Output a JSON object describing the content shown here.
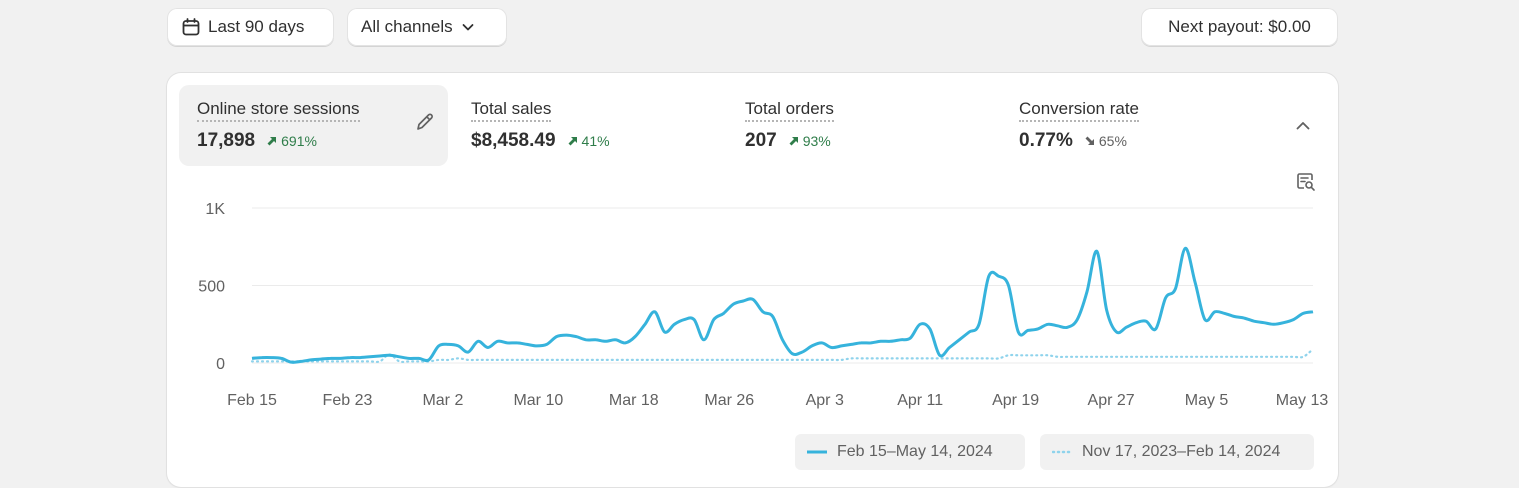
{
  "toolbar": {
    "date_range_label": "Last 90 days",
    "channels_label": "All channels",
    "payout_label": "Next payout: $0.00"
  },
  "metrics": [
    {
      "label": "Online store sessions",
      "value": "17,898",
      "change": "691%",
      "direction": "up"
    },
    {
      "label": "Total sales",
      "value": "$8,458.49",
      "change": "41%",
      "direction": "up"
    },
    {
      "label": "Total orders",
      "value": "207",
      "change": "93%",
      "direction": "up"
    },
    {
      "label": "Conversion rate",
      "value": "0.77%",
      "change": "65%",
      "direction": "down"
    }
  ],
  "icons": {
    "date": "calendar-icon",
    "channels": "chevron-down-icon",
    "edit": "pencil-icon",
    "collapse": "chevron-up-icon",
    "compare": "search-chart-icon"
  },
  "colors": {
    "primary_series": "#36b3dc",
    "comparison_series": "#8fd3ec",
    "up": "#2f7d4a",
    "down": "#616161"
  },
  "chart_data": {
    "type": "line",
    "title": "",
    "xlabel": "",
    "ylabel": "",
    "ylim": [
      0,
      1000
    ],
    "yticks": [
      0,
      500,
      1000
    ],
    "ytick_labels": [
      "0",
      "500",
      "1K"
    ],
    "xticks": [
      "Feb 15",
      "Feb 23",
      "Mar 2",
      "Mar 10",
      "Mar 18",
      "Mar 26",
      "Apr 3",
      "Apr 11",
      "Apr 19",
      "Apr 27",
      "May 5",
      "May 13"
    ],
    "grid": true,
    "legend_position": "bottom-right",
    "series": [
      {
        "name": "Feb 15–May 14, 2024",
        "style": "solid",
        "values": [
          30,
          35,
          35,
          30,
          5,
          10,
          20,
          25,
          30,
          30,
          35,
          35,
          40,
          45,
          50,
          40,
          30,
          30,
          20,
          110,
          120,
          110,
          70,
          140,
          100,
          140,
          130,
          130,
          120,
          110,
          120,
          170,
          180,
          170,
          150,
          150,
          140,
          150,
          130,
          170,
          250,
          330,
          200,
          250,
          280,
          280,
          150,
          280,
          320,
          380,
          400,
          410,
          330,
          300,
          150,
          60,
          70,
          110,
          130,
          100,
          110,
          120,
          130,
          130,
          140,
          140,
          150,
          160,
          250,
          220,
          50,
          100,
          150,
          200,
          250,
          560,
          560,
          500,
          200,
          210,
          220,
          250,
          240,
          230,
          280,
          460,
          720,
          340,
          200,
          230,
          260,
          270,
          220,
          420,
          480,
          740,
          520,
          280,
          330,
          320,
          300,
          290,
          270,
          260,
          250,
          260,
          280,
          320,
          330
        ]
      },
      {
        "name": "Nov 17, 2023–Feb 14, 2024",
        "style": "dotted",
        "values": [
          10,
          10,
          10,
          10,
          10,
          10,
          10,
          10,
          10,
          10,
          10,
          10,
          10,
          10,
          55,
          10,
          10,
          10,
          10,
          20,
          20,
          30,
          20,
          20,
          20,
          20,
          20,
          20,
          20,
          20,
          20,
          20,
          20,
          20,
          20,
          20,
          20,
          20,
          20,
          20,
          20,
          20,
          20,
          20,
          20,
          20,
          20,
          20,
          20,
          20,
          20,
          20,
          20,
          20,
          20,
          20,
          20,
          20,
          20,
          20,
          20,
          30,
          30,
          30,
          30,
          30,
          30,
          30,
          30,
          30,
          30,
          30,
          30,
          30,
          30,
          30,
          30,
          50,
          50,
          50,
          50,
          50,
          40,
          40,
          40,
          40,
          40,
          40,
          40,
          40,
          40,
          40,
          40,
          40,
          40,
          40,
          40,
          40,
          40,
          40,
          40,
          40,
          40,
          40,
          40,
          40,
          40,
          40,
          90
        ]
      }
    ]
  }
}
